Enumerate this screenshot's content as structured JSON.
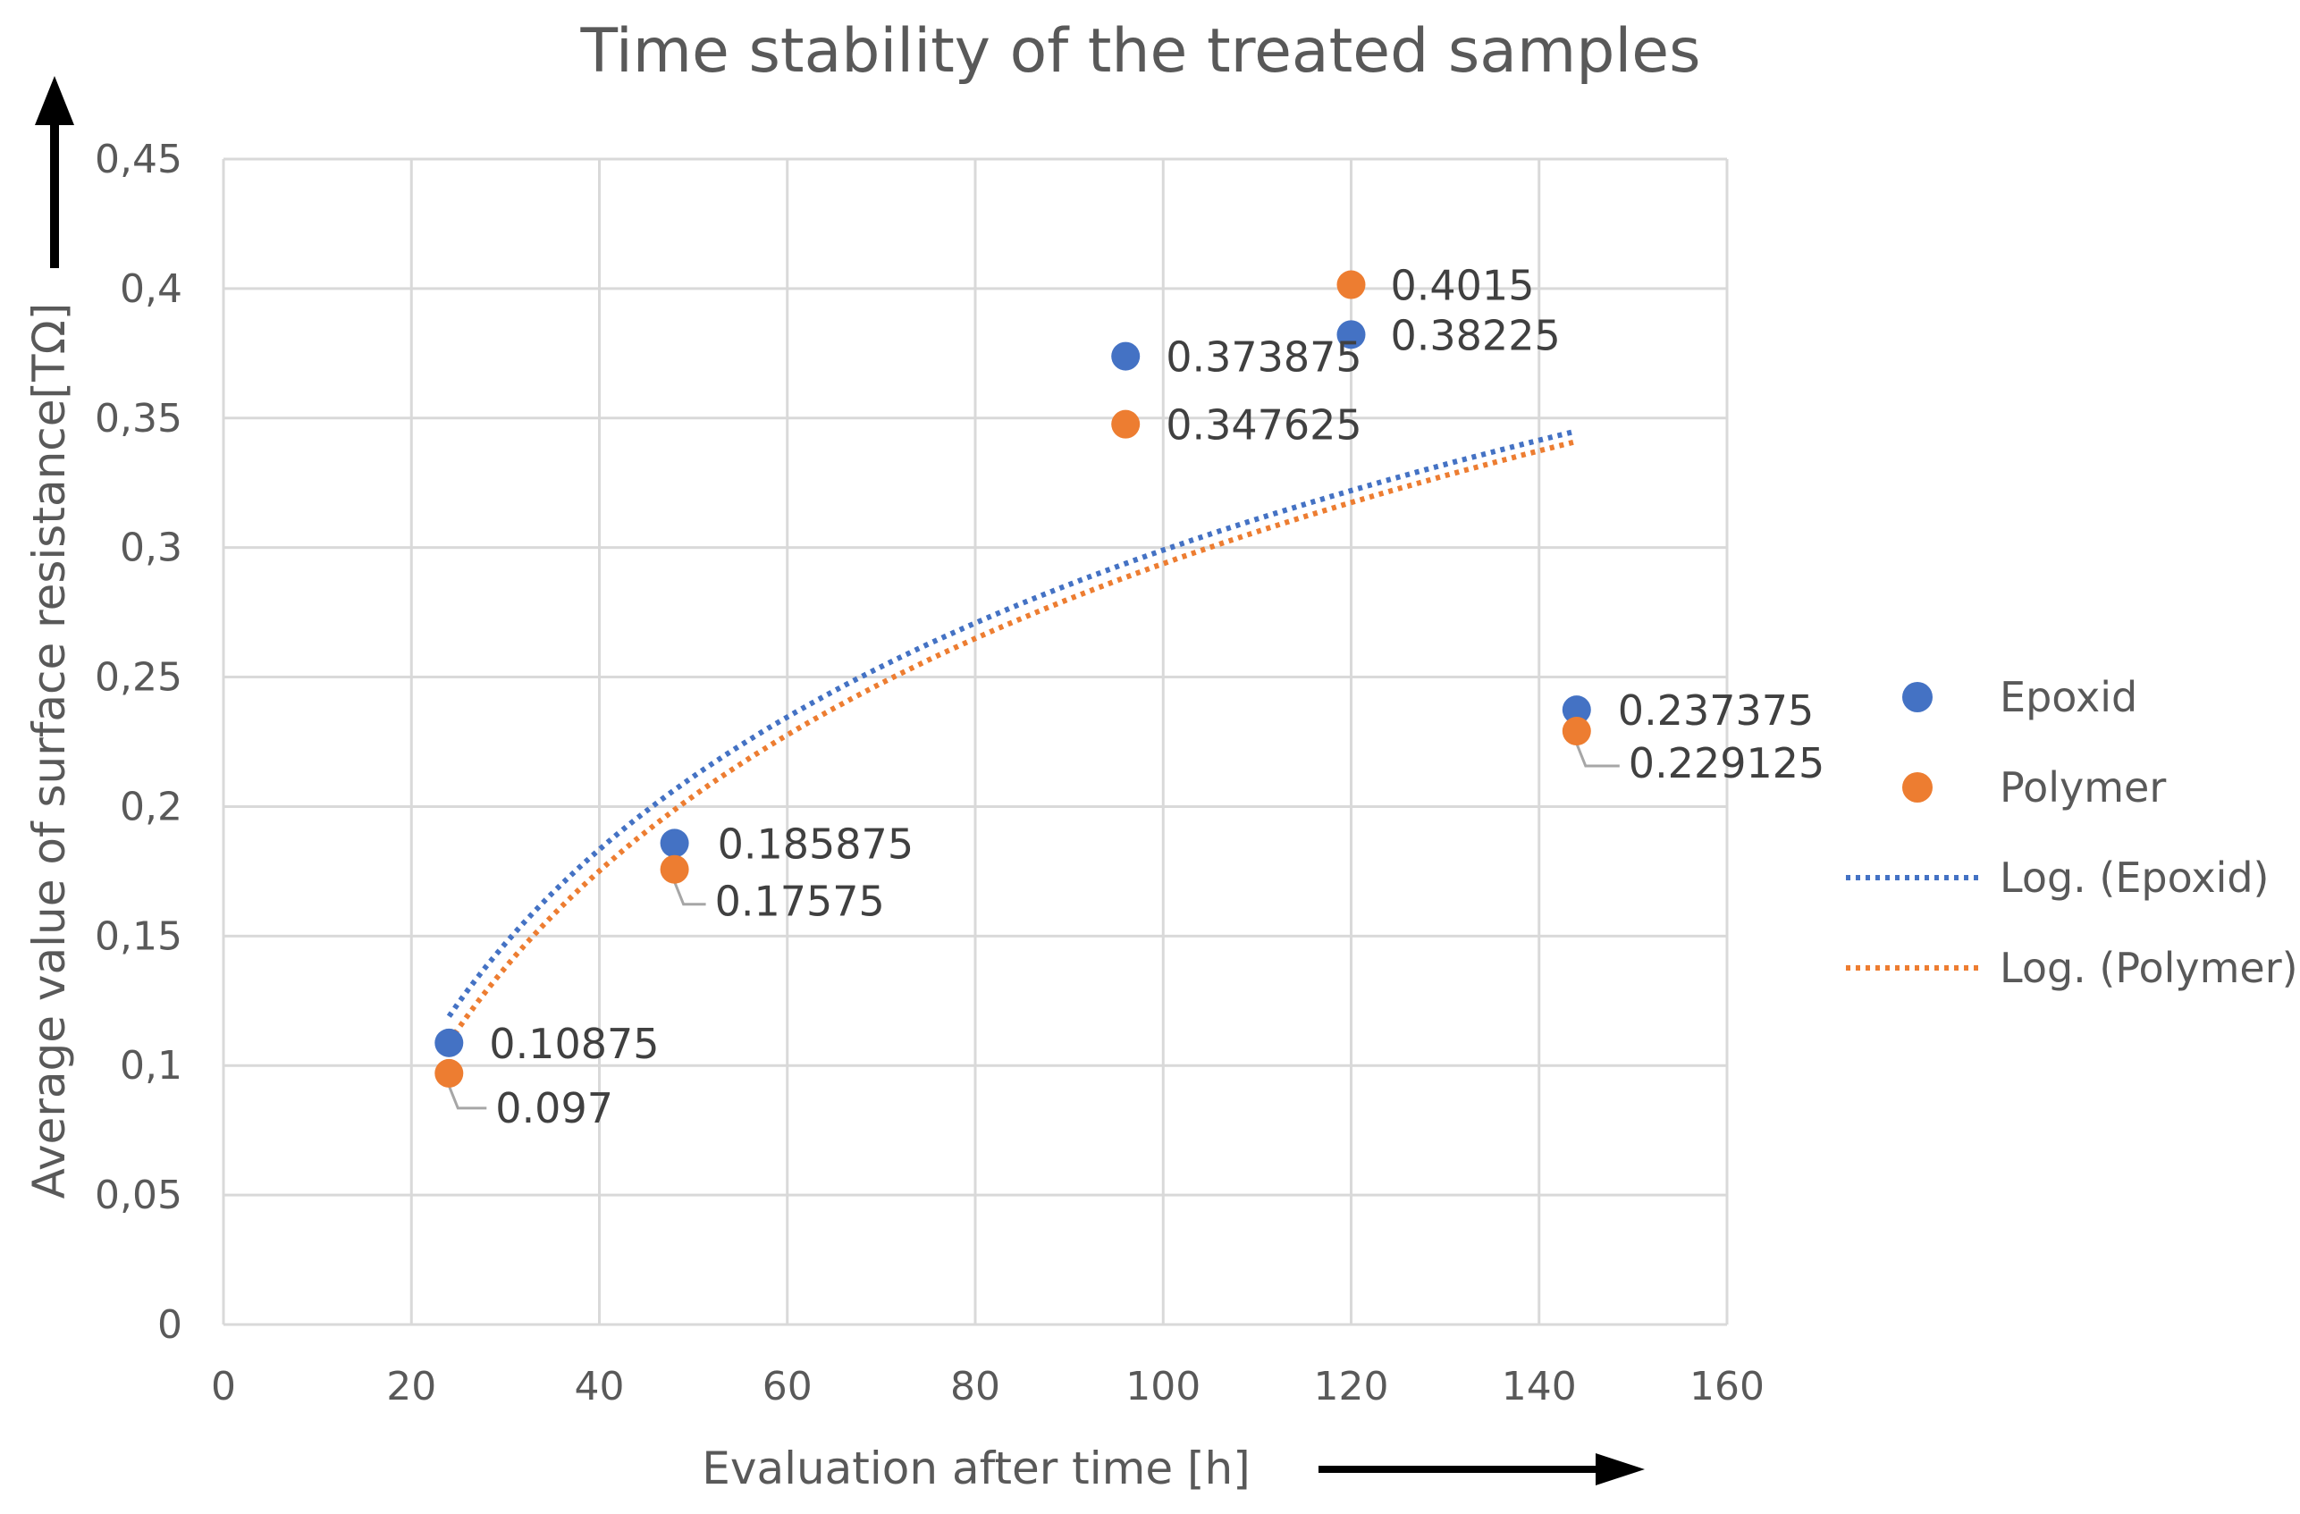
{
  "chart_data": {
    "type": "scatter",
    "title": "Time stability of the treated samples",
    "xlabel": "Evaluation after time [h]",
    "ylabel": "Average value of surface resistance[TΩ]",
    "xlim": [
      0,
      160
    ],
    "ylim": [
      0,
      0.45
    ],
    "grid": true,
    "x_ticks": [
      0,
      20,
      40,
      60,
      80,
      100,
      120,
      140,
      160
    ],
    "y_ticks": [
      0,
      0.05,
      0.1,
      0.15,
      0.2,
      0.25,
      0.3,
      0.35,
      0.4,
      0.45
    ],
    "x_tick_labels": [
      "0",
      "20",
      "40",
      "60",
      "80",
      "100",
      "120",
      "140",
      "160"
    ],
    "y_tick_labels": [
      "0",
      "0,05",
      "0,1",
      "0,15",
      "0,2",
      "0,25",
      "0,3",
      "0,35",
      "0,4",
      "0,45"
    ],
    "legend_position": "right",
    "series": [
      {
        "name": "Epoxid",
        "color": "#4472c4",
        "x": [
          24,
          48,
          96,
          120,
          144
        ],
        "values": [
          0.10875,
          0.185875,
          0.373875,
          0.38225,
          0.237375
        ],
        "labels": [
          "0.10875",
          "0.185875",
          "0.373875",
          "0.38225",
          "0.237375"
        ]
      },
      {
        "name": "Polymer",
        "color": "#ed7d31",
        "x": [
          24,
          48,
          96,
          120,
          144
        ],
        "values": [
          0.097,
          0.17575,
          0.347625,
          0.4015,
          0.229125
        ],
        "labels": [
          "0.097",
          "0.17575",
          "0.347625",
          "0.4015",
          "0.229125"
        ]
      }
    ],
    "trendlines": [
      {
        "name": "Log. (Epoxid)",
        "type": "log",
        "color": "#4472c4",
        "x_range": [
          24,
          144
        ],
        "y_start": 0.119,
        "y_end": 0.345
      },
      {
        "name": "Log. (Polymer)",
        "type": "log",
        "color": "#ed7d31",
        "x_range": [
          24,
          144
        ],
        "y_start": 0.109,
        "y_end": 0.341
      }
    ]
  }
}
